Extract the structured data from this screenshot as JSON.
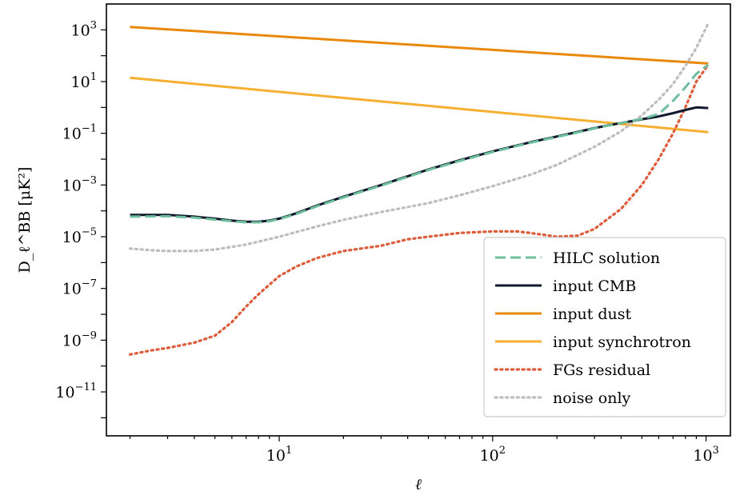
{
  "chart_data": {
    "type": "line",
    "xscale": "log",
    "yscale": "log",
    "xlim": [
      1.55,
      1300
    ],
    "ylim": [
      2e-13,
      10000.0
    ],
    "xlabel": "ℓ",
    "ylabel": "D_ℓ^BB [μK²]",
    "xticks": [
      {
        "base": "10",
        "exp": "1",
        "value": 10
      },
      {
        "base": "10",
        "exp": "2",
        "value": 100
      },
      {
        "base": "10",
        "exp": "3",
        "value": 1000
      }
    ],
    "yticks": [
      {
        "base": "10",
        "exp": "3",
        "value": 1000.0
      },
      {
        "base": "10",
        "exp": "1",
        "value": 10.0
      },
      {
        "base": "10",
        "exp": "−1",
        "value": 0.1
      },
      {
        "base": "10",
        "exp": "−3",
        "value": 0.001
      },
      {
        "base": "10",
        "exp": "−5",
        "value": 1e-05
      },
      {
        "base": "10",
        "exp": "−7",
        "value": 1e-07
      },
      {
        "base": "10",
        "exp": "−9",
        "value": 1e-09
      },
      {
        "base": "10",
        "exp": "−11",
        "value": 1e-11
      }
    ],
    "legend_position": "lower right",
    "series": [
      {
        "name": "input dust",
        "color": "#e8890c",
        "style": "solid",
        "x": [
          2,
          1024
        ],
        "y": [
          1300,
          50
        ]
      },
      {
        "name": "input synchrotron",
        "color": "#f5b031",
        "style": "solid",
        "x": [
          2,
          1024
        ],
        "y": [
          14,
          0.11
        ]
      },
      {
        "name": "noise only",
        "color": "#bdbdbd",
        "style": "dotted",
        "x": [
          2,
          2.5,
          3,
          4,
          5,
          7,
          10,
          15,
          20,
          30,
          50,
          70,
          100,
          150,
          200,
          300,
          400,
          500,
          600,
          700,
          800,
          900,
          1024
        ],
        "y": [
          3.5e-06,
          3e-06,
          2.8e-06,
          2.8e-06,
          3.2e-06,
          5e-06,
          1e-05,
          2.5e-05,
          4.5e-05,
          9e-05,
          0.0002,
          0.0004,
          0.0009,
          0.0025,
          0.006,
          0.03,
          0.12,
          0.5,
          2,
          8,
          40,
          200,
          1800
        ]
      },
      {
        "name": "FGs residual",
        "color": "#de5b3a",
        "style": "dotted",
        "x": [
          2,
          2.5,
          3,
          4,
          5,
          6,
          7,
          8,
          10,
          12,
          15,
          20,
          30,
          40,
          50,
          70,
          100,
          130,
          150,
          200,
          250,
          300,
          400,
          500,
          600,
          700,
          800,
          900,
          1024
        ],
        "y": [
          2.8e-10,
          4e-10,
          5e-10,
          8e-10,
          1.5e-09,
          5e-09,
          2e-08,
          6e-08,
          3e-07,
          7e-07,
          1.5e-06,
          2.8e-06,
          4.5e-06,
          8e-06,
          1e-05,
          1.4e-05,
          1.6e-05,
          1.6e-05,
          1.4e-05,
          1e-05,
          1.1e-05,
          2e-05,
          0.00012,
          0.001,
          0.01,
          0.1,
          1,
          10,
          45
        ]
      },
      {
        "name": "input CMB",
        "color": "#111a2c",
        "style": "solid",
        "x": [
          2,
          3,
          4,
          5,
          6,
          7,
          8,
          9,
          10,
          12,
          15,
          20,
          30,
          50,
          70,
          100,
          150,
          200,
          270,
          300,
          400,
          500,
          600,
          700,
          800,
          900,
          1024
        ],
        "y": [
          7e-05,
          7e-05,
          6e-05,
          5e-05,
          4.2e-05,
          3.8e-05,
          3.8e-05,
          4.2e-05,
          5e-05,
          8e-05,
          0.00016,
          0.00035,
          0.001,
          0.004,
          0.009,
          0.02,
          0.045,
          0.075,
          0.13,
          0.16,
          0.25,
          0.35,
          0.45,
          0.6,
          0.8,
          1.0,
          0.95
        ]
      },
      {
        "name": "HILC solution",
        "color": "#6dbf9e",
        "style": "dashed",
        "x": [
          2,
          3,
          4,
          5,
          6,
          7,
          8,
          9,
          10,
          12,
          15,
          20,
          30,
          50,
          70,
          100,
          150,
          200,
          270,
          300,
          400,
          500,
          600,
          700,
          800,
          900,
          1024
        ],
        "y": [
          6e-05,
          6.2e-05,
          5.5e-05,
          4.6e-05,
          4e-05,
          3.6e-05,
          3.6e-05,
          4e-05,
          4.8e-05,
          7.5e-05,
          0.00015,
          0.00033,
          0.00095,
          0.0038,
          0.0085,
          0.019,
          0.043,
          0.072,
          0.125,
          0.155,
          0.25,
          0.36,
          0.55,
          1.8,
          6,
          20,
          45
        ]
      }
    ],
    "legend_order": [
      "HILC solution",
      "input CMB",
      "input dust",
      "input synchrotron",
      "FGs residual",
      "noise only"
    ]
  }
}
